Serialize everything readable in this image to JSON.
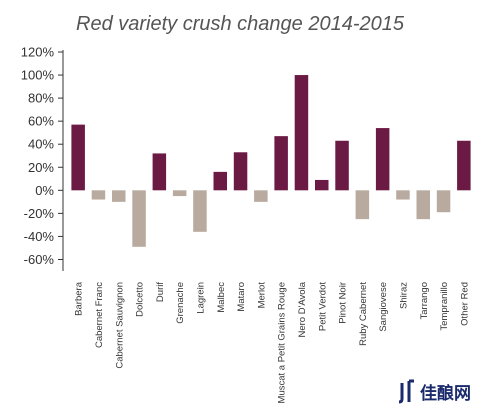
{
  "chart_data": {
    "type": "bar",
    "title": "Red variety crush change 2014-2015",
    "xlabel": "",
    "ylabel": "",
    "ylim": [
      -70,
      120
    ],
    "yticks": [
      120,
      100,
      80,
      60,
      40,
      20,
      0,
      -20,
      -40,
      -60
    ],
    "ytick_labels": [
      "120%",
      "100%",
      "80%",
      "60%",
      "40%",
      "20%",
      "0%",
      "-20%",
      "-40%",
      "-60%"
    ],
    "grid": false,
    "legend": "none",
    "categories": [
      "Barbera",
      "Cabernet Franc",
      "Cabernet Sauvignon",
      "Dolcetto",
      "Durif",
      "Grenache",
      "Lagrein",
      "Malbec",
      "Mataro",
      "Merlot",
      "Muscat a Petit Grains Rouge",
      "Nero D'Avola",
      "Petit Verdot",
      "Pinot Noir",
      "Ruby Cabernet",
      "Sangiovese",
      "Shiraz",
      "Tarrango",
      "Tempranillo",
      "Other Red"
    ],
    "values": [
      57,
      -8,
      -10,
      -49,
      32,
      -5,
      -36,
      16,
      33,
      -10,
      47,
      100,
      9,
      43,
      -25,
      54,
      -8,
      -25,
      -19,
      43
    ],
    "colors": {
      "positive": "#6b1a44",
      "negative": "#b8aa9e",
      "axis": "#333333"
    }
  },
  "watermark": {
    "text": "佳酿网",
    "logo_color": "#1a2a6c"
  }
}
